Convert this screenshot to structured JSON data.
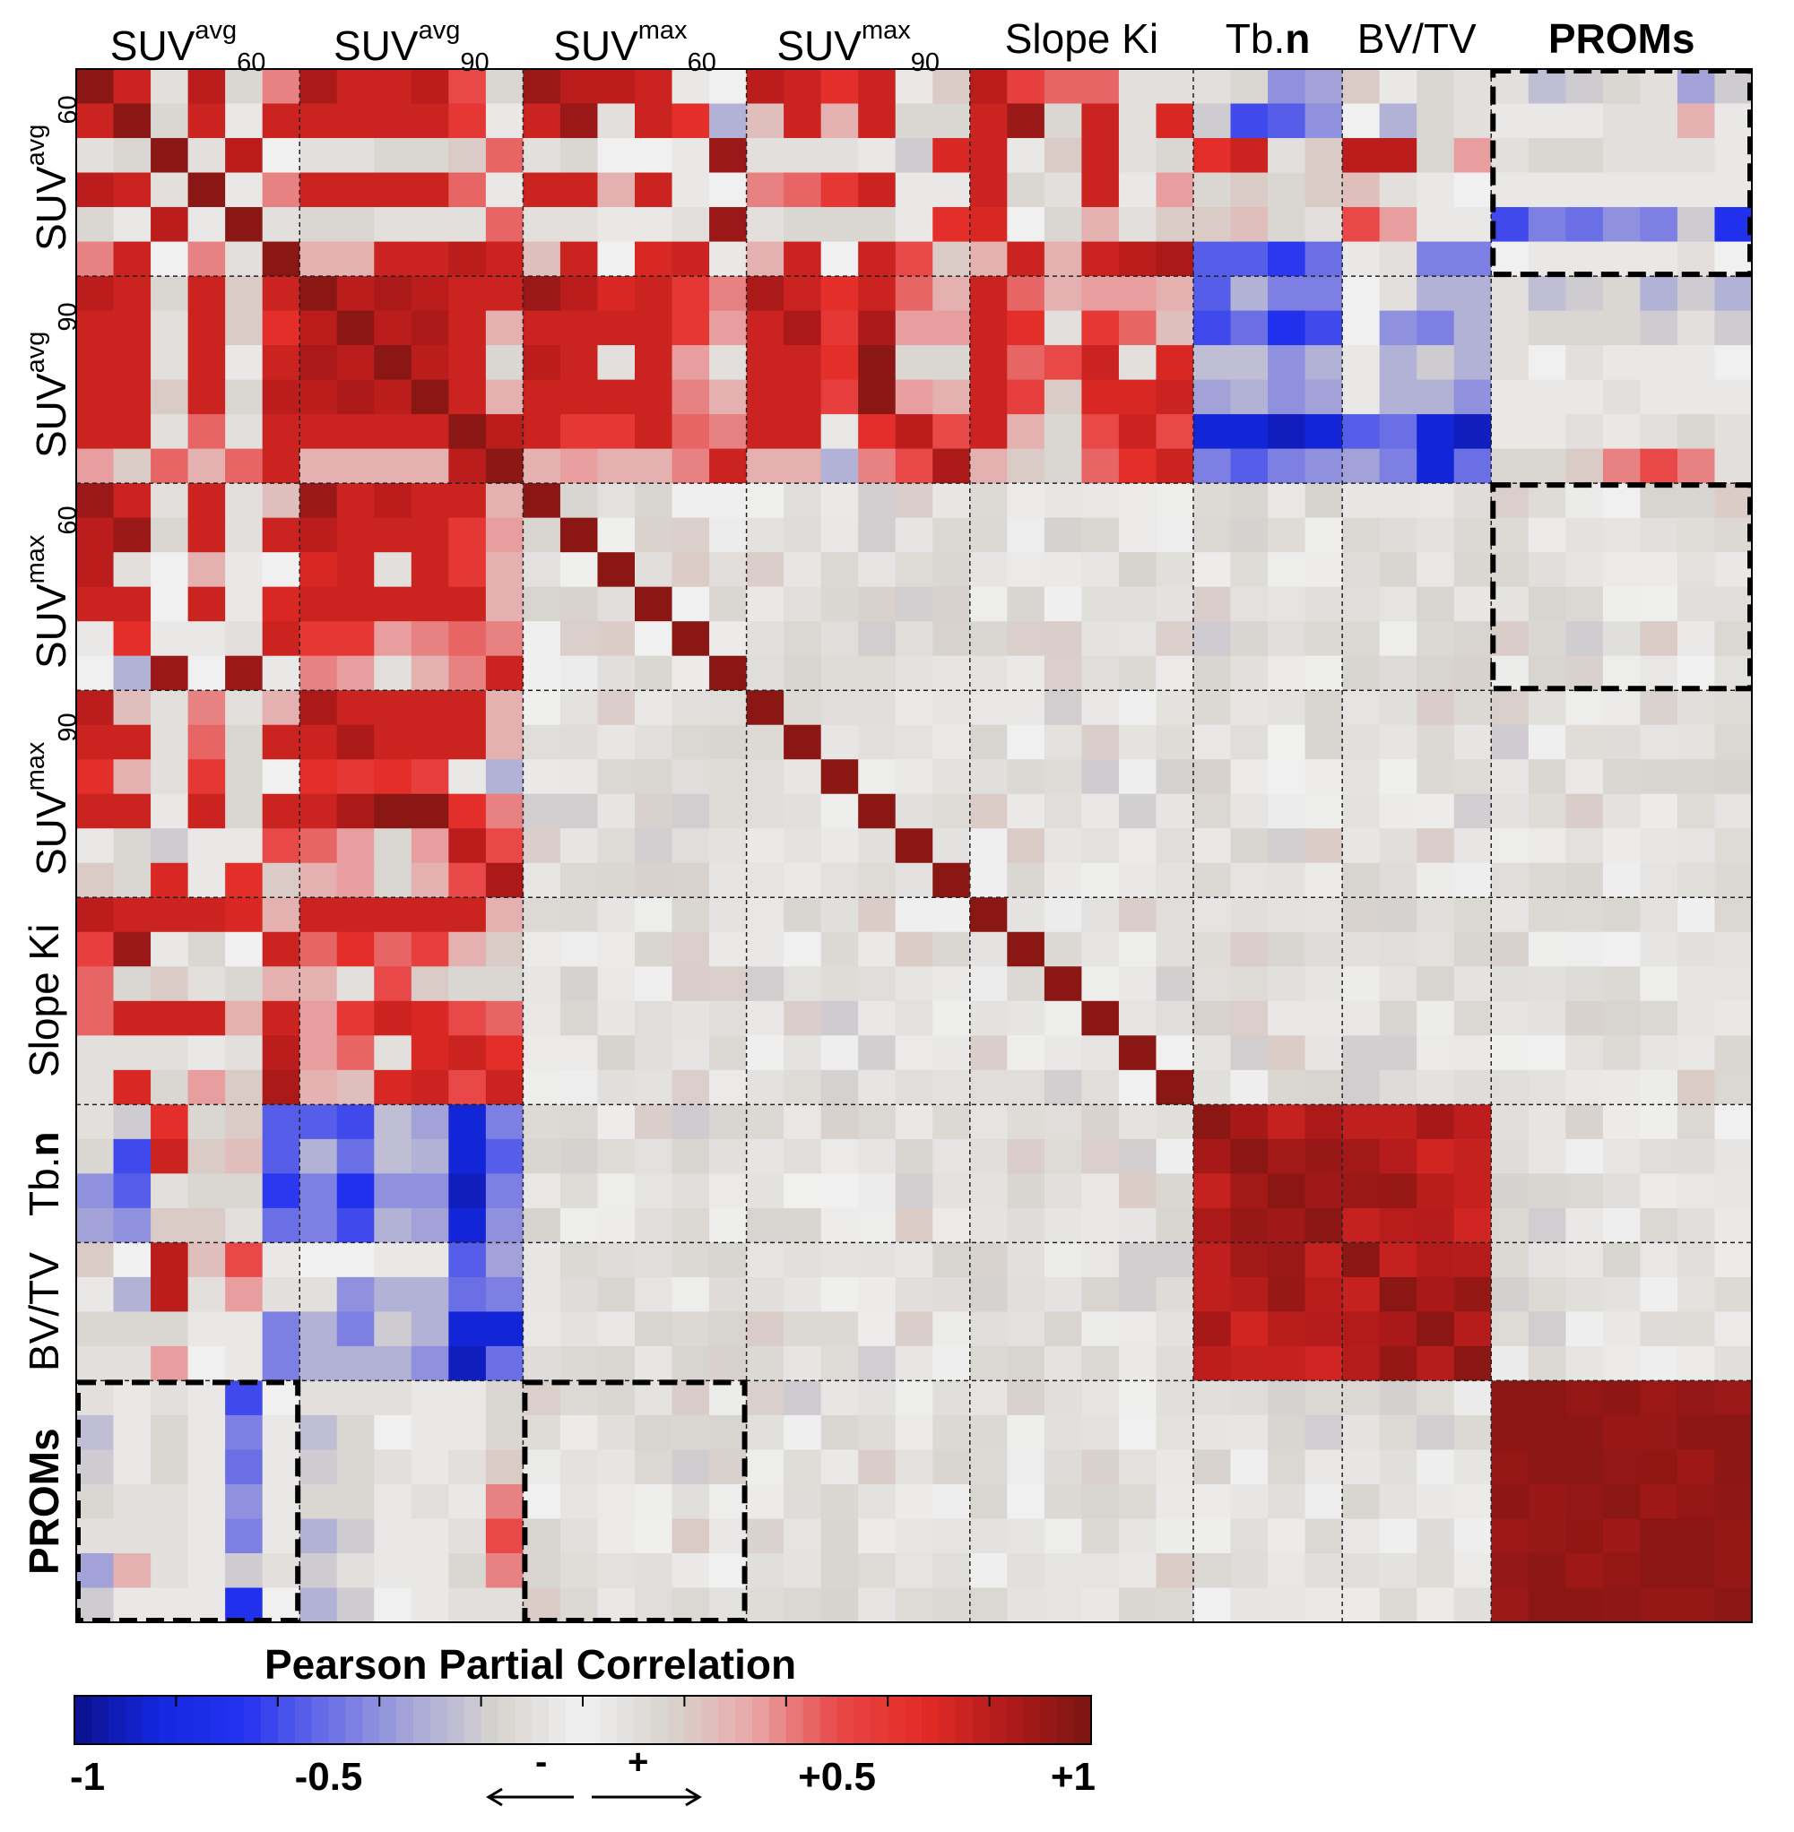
{
  "chart_data": {
    "type": "heatmap",
    "title": "",
    "legend_title": "Pearson Partial Correlation",
    "groups": [
      {
        "id": "suv_avg_60",
        "base": "SUV",
        "sup": "avg",
        "sub": "60",
        "size": 6
      },
      {
        "id": "suv_avg_90",
        "base": "SUV",
        "sup": "avg",
        "sub": "90",
        "size": 6
      },
      {
        "id": "suv_max_60",
        "base": "SUV",
        "sup": "max",
        "sub": "60",
        "size": 6
      },
      {
        "id": "suv_max_90",
        "base": "SUV",
        "sup": "max",
        "sub": "90",
        "size": 6
      },
      {
        "id": "slope_ki",
        "base": "Slope Ki",
        "sup": "",
        "sub": "",
        "size": 6
      },
      {
        "id": "tb_n",
        "base": "Tb.",
        "bold_suffix": "n",
        "sup": "",
        "sub": "",
        "size": 4
      },
      {
        "id": "bv_tv",
        "base": "BV/TV",
        "sup": "",
        "sub": "",
        "size": 4
      },
      {
        "id": "proms",
        "base": "PROMs",
        "sup": "",
        "sub": "",
        "size": 7,
        "bold": true
      }
    ],
    "highlighted_blocks": [
      {
        "row_group": "suv_avg_60",
        "col_group": "proms"
      },
      {
        "row_group": "suv_max_60",
        "col_group": "proms"
      },
      {
        "row_group": "proms",
        "col_group": "suv_avg_60"
      },
      {
        "row_group": "proms",
        "col_group": "suv_max_60"
      }
    ],
    "colorbar": {
      "min": -1,
      "max": 1,
      "colors": [
        "#0a0f8a",
        "#1428e0",
        "#2432f0",
        "#6a6fe6",
        "#a8a8d8",
        "#d8d4cf",
        "#f0f0f0",
        "#d8d4cf",
        "#e8a8a8",
        "#e84848",
        "#e32b26",
        "#b01a1a",
        "#7a1512"
      ],
      "tick_labels": [
        {
          "value": -1,
          "label": "-1"
        },
        {
          "value": -0.5,
          "label": "-0.5"
        },
        {
          "value": 0.5,
          "label": "+0.5"
        },
        {
          "value": 1,
          "label": "+1"
        }
      ],
      "negative_arrow_label": "-",
      "positive_arrow_label": "+"
    },
    "matrix": [
      [
        0.95,
        0.75,
        0.1,
        0.8,
        0.15,
        0.4,
        0.85,
        0.75,
        0.75,
        0.8,
        0.5,
        0.15,
        0.9,
        0.8,
        0.8,
        0.75,
        0.05,
        0.0,
        0.8,
        0.75,
        0.65,
        0.75,
        0.05,
        0.2,
        0.8,
        0.55,
        0.45,
        0.45,
        0.1,
        0.1,
        0.1,
        0.15,
        -0.4,
        -0.35,
        0.2,
        0.05,
        0.15,
        0.1,
        0.1,
        -0.25,
        -0.2,
        -0.15,
        -0.1,
        -0.35,
        -0.2
      ],
      [
        0.75,
        0.95,
        -0.15,
        0.75,
        0.05,
        0.75,
        0.75,
        0.75,
        0.75,
        0.75,
        0.6,
        0.05,
        0.75,
        0.9,
        0.1,
        0.75,
        0.65,
        -0.3,
        0.25,
        0.75,
        0.3,
        0.75,
        0.15,
        0.15,
        0.75,
        0.9,
        0.15,
        0.75,
        0.1,
        0.7,
        -0.2,
        -0.6,
        -0.55,
        -0.4,
        0.0,
        -0.3,
        0.15,
        0.1,
        0.05,
        0.05,
        0.05,
        0.1,
        0.1,
        0.3,
        0.05
      ],
      [
        0.1,
        -0.15,
        0.95,
        0.1,
        0.8,
        0.0,
        0.1,
        0.1,
        0.15,
        0.15,
        0.2,
        0.45,
        0.1,
        -0.15,
        0.0,
        0.0,
        0.05,
        0.9,
        0.1,
        0.1,
        0.1,
        0.05,
        -0.2,
        0.7,
        0.75,
        0.05,
        0.2,
        0.75,
        0.1,
        0.15,
        0.65,
        0.75,
        0.1,
        0.2,
        0.8,
        0.8,
        0.15,
        0.35,
        0.1,
        0.15,
        0.15,
        0.1,
        0.1,
        0.1,
        0.05
      ],
      [
        0.8,
        0.75,
        0.1,
        0.95,
        0.05,
        0.4,
        0.75,
        0.75,
        0.75,
        0.75,
        0.45,
        0.05,
        0.75,
        0.75,
        0.3,
        0.75,
        0.05,
        0.0,
        0.4,
        0.45,
        0.6,
        0.75,
        0.05,
        0.05,
        0.75,
        0.15,
        0.1,
        0.75,
        0.05,
        0.35,
        0.15,
        0.2,
        0.15,
        0.2,
        0.25,
        0.1,
        0.05,
        0.0,
        0.05,
        0.05,
        0.05,
        0.05,
        0.05,
        0.05,
        0.05
      ],
      [
        0.15,
        0.05,
        0.8,
        0.05,
        0.95,
        0.1,
        0.15,
        0.15,
        0.1,
        0.1,
        0.1,
        0.45,
        0.1,
        0.1,
        0.05,
        0.05,
        0.1,
        0.9,
        0.1,
        0.15,
        0.15,
        0.15,
        0.05,
        0.65,
        0.7,
        0.0,
        0.15,
        0.3,
        0.1,
        0.2,
        0.2,
        0.25,
        0.15,
        0.1,
        0.5,
        0.35,
        0.05,
        0.05,
        -0.6,
        -0.45,
        -0.5,
        -0.4,
        -0.45,
        -0.2,
        -0.7
      ],
      [
        0.4,
        0.75,
        0.0,
        0.4,
        0.1,
        0.95,
        0.3,
        0.3,
        0.75,
        0.75,
        0.8,
        0.75,
        0.25,
        0.75,
        0.0,
        0.7,
        0.75,
        0.05,
        0.3,
        0.75,
        0.0,
        0.75,
        0.5,
        0.2,
        0.3,
        0.75,
        0.3,
        0.75,
        0.8,
        0.85,
        -0.55,
        -0.55,
        -0.65,
        -0.5,
        0.05,
        -0.1,
        -0.45,
        -0.45,
        0.0,
        0.05,
        0.05,
        0.05,
        0.05,
        0.1,
        0.0
      ],
      [
        0.8,
        0.75,
        0.15,
        0.75,
        0.2,
        0.75,
        0.95,
        0.8,
        0.85,
        0.8,
        0.75,
        0.75,
        0.9,
        0.8,
        0.7,
        0.75,
        0.6,
        0.4,
        0.85,
        0.75,
        0.65,
        0.75,
        0.45,
        0.3,
        0.75,
        0.45,
        0.3,
        0.35,
        0.35,
        0.3,
        -0.55,
        -0.3,
        -0.45,
        -0.45,
        0.0,
        -0.1,
        -0.3,
        -0.3,
        0.1,
        -0.25,
        -0.2,
        -0.15,
        -0.3,
        -0.2,
        -0.3
      ],
      [
        0.75,
        0.75,
        0.1,
        0.75,
        0.2,
        0.65,
        0.8,
        0.95,
        0.8,
        0.85,
        0.75,
        0.3,
        0.75,
        0.75,
        0.75,
        0.75,
        0.6,
        0.35,
        0.75,
        0.85,
        0.6,
        0.85,
        0.35,
        0.35,
        0.75,
        0.65,
        0.1,
        0.6,
        0.45,
        0.25,
        -0.6,
        -0.5,
        -0.7,
        -0.6,
        0.0,
        -0.4,
        -0.45,
        -0.3,
        0.1,
        -0.15,
        -0.15,
        -0.15,
        -0.2,
        -0.1,
        -0.2
      ],
      [
        0.75,
        0.75,
        0.1,
        0.75,
        0.05,
        0.75,
        0.85,
        0.8,
        0.95,
        0.8,
        0.75,
        0.15,
        0.8,
        0.75,
        0.1,
        0.75,
        0.35,
        0.1,
        0.75,
        0.75,
        0.65,
        0.95,
        0.15,
        0.15,
        0.75,
        0.45,
        0.5,
        0.75,
        0.1,
        0.7,
        -0.25,
        -0.25,
        -0.4,
        -0.3,
        0.05,
        -0.3,
        -0.2,
        -0.3,
        0.1,
        0.0,
        0.1,
        0.05,
        0.05,
        0.05,
        0.0
      ],
      [
        0.75,
        0.75,
        0.2,
        0.75,
        0.15,
        0.8,
        0.8,
        0.85,
        0.8,
        0.95,
        0.75,
        0.3,
        0.75,
        0.75,
        0.75,
        0.75,
        0.4,
        0.3,
        0.75,
        0.75,
        0.55,
        0.95,
        0.35,
        0.3,
        0.75,
        0.55,
        0.2,
        0.7,
        0.7,
        0.75,
        -0.35,
        -0.3,
        -0.4,
        -0.35,
        0.05,
        -0.3,
        -0.3,
        -0.4,
        0.05,
        0.05,
        0.05,
        0.1,
        0.05,
        0.05,
        0.05
      ],
      [
        0.75,
        0.75,
        0.1,
        0.45,
        0.1,
        0.75,
        0.75,
        0.75,
        0.75,
        0.75,
        0.95,
        0.8,
        0.75,
        0.6,
        0.6,
        0.75,
        0.45,
        0.4,
        0.75,
        0.75,
        0.05,
        0.65,
        0.8,
        0.5,
        0.75,
        0.3,
        0.15,
        0.5,
        0.75,
        0.5,
        -0.85,
        -0.85,
        -0.9,
        -0.85,
        -0.55,
        -0.5,
        -0.85,
        -0.9,
        0.05,
        0.05,
        0.1,
        0.05,
        0.1,
        0.15,
        0.1
      ],
      [
        0.35,
        0.2,
        0.45,
        0.3,
        0.45,
        0.75,
        0.3,
        0.3,
        0.3,
        0.3,
        0.8,
        0.95,
        0.3,
        0.35,
        0.3,
        0.3,
        0.4,
        0.75,
        0.3,
        0.3,
        -0.3,
        0.4,
        0.5,
        0.85,
        0.3,
        0.2,
        0.15,
        0.45,
        0.65,
        0.75,
        -0.45,
        -0.55,
        -0.45,
        -0.4,
        -0.35,
        -0.45,
        -0.85,
        -0.5,
        0.15,
        0.15,
        0.2,
        0.4,
        0.5,
        0.4,
        0.1
      ]
    ]
  }
}
